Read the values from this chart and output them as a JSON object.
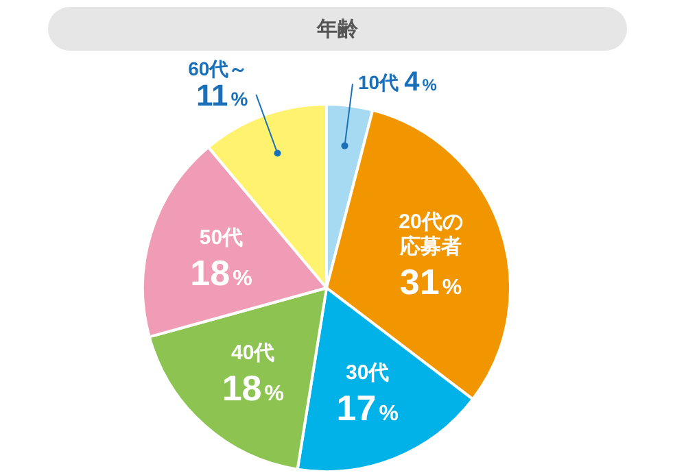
{
  "chart_data": {
    "type": "pie",
    "title": "年齢",
    "categories": [
      "10代",
      "20代の応募者",
      "30代",
      "40代",
      "50代",
      "60代～"
    ],
    "values": [
      4,
      31,
      17,
      18,
      18,
      11
    ],
    "value_labels": [
      "4%",
      "31%",
      "17%",
      "18%",
      "18%",
      "11%"
    ],
    "colors": [
      "#a6d9f2",
      "#f29600",
      "#00b2e8",
      "#8cc351",
      "#f09cb6",
      "#fff26f"
    ],
    "legend": false
  }
}
